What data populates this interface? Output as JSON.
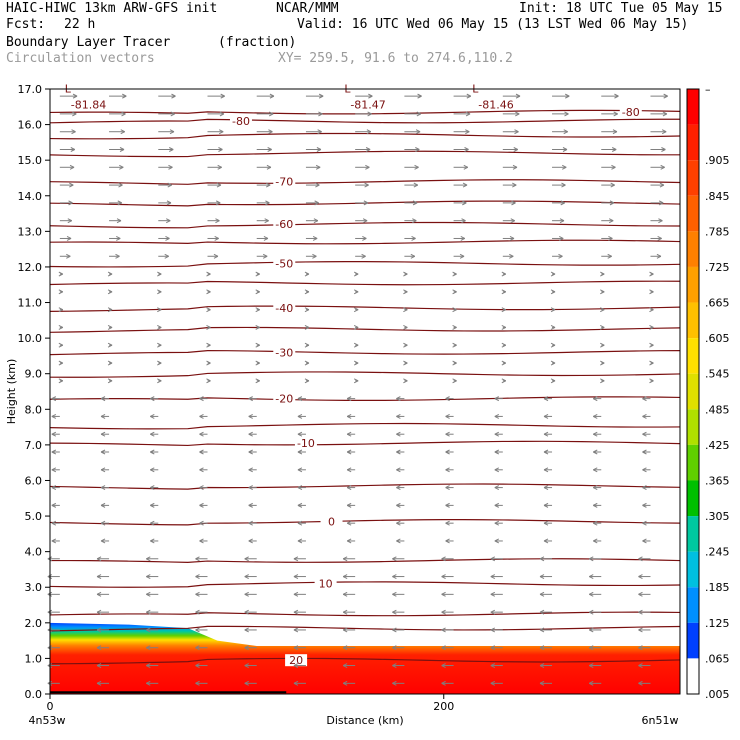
{
  "header": {
    "model": "HAIC-HIWC 13km ARW-GFS init",
    "org": "NCAR/MMM",
    "init": "Init: 18 UTC Tue 05 May 15",
    "fcst_label": "Fcst:",
    "fcst_value": "22 h",
    "valid": "Valid: 16 UTC Wed 06 May 15 (13 LST Wed 06 May 15)",
    "field": "Boundary Layer Tracer",
    "units": "(fraction)",
    "vectors": "Circulation vectors",
    "xy": "XY= 259.5, 91.6 to 274.6,110.2"
  },
  "colors": {
    "contour": "#7a1010",
    "vector": "#7f7f7f"
  },
  "chart_data": {
    "type": "heatmap",
    "title": "Boundary Layer Tracer",
    "ylabel": "Height (km)",
    "xlabel": "Distance (km)",
    "ylim": [
      0,
      17
    ],
    "xlim": [
      0,
      320
    ],
    "y_ticks": [
      "0.0",
      "1.0",
      "2.0",
      "3.0",
      "4.0",
      "5.0",
      "6.0",
      "7.0",
      "8.0",
      "9.0",
      "10.0",
      "11.0",
      "12.0",
      "13.0",
      "14.0",
      "15.0",
      "16.0",
      "17.0"
    ],
    "x_ticks": [
      {
        "value": 0,
        "label": "0"
      },
      {
        "value": 200,
        "label": "200"
      }
    ],
    "x_end_labels": {
      "left": "4n53w",
      "right": "6n51w"
    },
    "colorbar_labels": [
      "–",
      ".905",
      ".845",
      ".785",
      ".725",
      ".665",
      ".605",
      ".545",
      ".485",
      ".425",
      ".365",
      ".305",
      ".245",
      ".185",
      ".125",
      ".065",
      ".005"
    ],
    "colorbar_colors": [
      "#ff0000",
      "#ff2000",
      "#ff4000",
      "#ff6000",
      "#ff8000",
      "#ffa000",
      "#ffc000",
      "#ffe000",
      "#e0e000",
      "#b0e000",
      "#60d000",
      "#00c000",
      "#00c8a0",
      "#00c0e0",
      "#0090ff",
      "#0040ff",
      "#ffffff"
    ],
    "tracer_top": [
      {
        "x": 0,
        "z": 2.0
      },
      {
        "x": 40,
        "z": 1.95
      },
      {
        "x": 70,
        "z": 1.85
      },
      {
        "x": 85,
        "z": 1.5
      },
      {
        "x": 105,
        "z": 1.35
      },
      {
        "x": 130,
        "z": 1.35
      },
      {
        "x": 200,
        "z": 1.35
      },
      {
        "x": 320,
        "z": 1.35
      }
    ],
    "contours": [
      {
        "label": "-80",
        "z": 16.1,
        "label_x": 97
      },
      {
        "label": "-80",
        "z": 16.35,
        "label_x": 295
      },
      {
        "label": "-70",
        "z": 14.4,
        "label_x": 119
      },
      {
        "label": "-60",
        "z": 13.2,
        "label_x": 119
      },
      {
        "label": "-50",
        "z": 12.1,
        "label_x": 119
      },
      {
        "label": "-40",
        "z": 10.85,
        "label_x": 119
      },
      {
        "label": "-30",
        "z": 9.6,
        "label_x": 119
      },
      {
        "label": "-20",
        "z": 8.3,
        "label_x": 119
      },
      {
        "label": "-10",
        "z": 7.05,
        "label_x": 130
      },
      {
        "label": "0",
        "z": 4.85,
        "label_x": 143
      },
      {
        "label": "10",
        "z": 3.1,
        "label_x": 140
      },
      {
        "label": "20",
        "z": 0.95,
        "label_x": 125
      }
    ],
    "extra_contours_z": [
      1.85,
      2.25,
      3.75,
      5.85,
      7.55,
      9.0,
      10.25,
      11.55,
      12.7,
      13.8,
      15.2,
      15.7
    ],
    "lows": [
      {
        "x": 8,
        "label": "L",
        "value": "-81.84"
      },
      {
        "x": 150,
        "label": "L",
        "value": "-81.47"
      },
      {
        "x": 215,
        "label": "L",
        "value": "-81.46"
      }
    ]
  }
}
